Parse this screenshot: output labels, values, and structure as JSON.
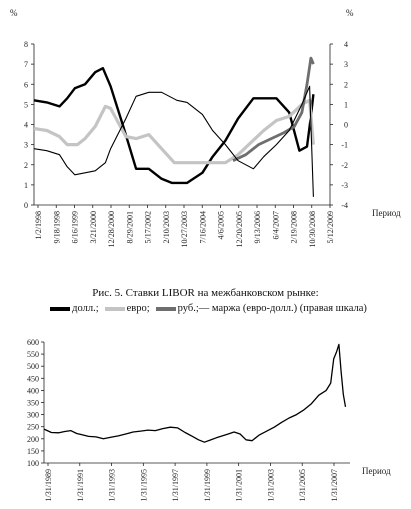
{
  "figure_caption": "Рис. 5. Ставки LIBOR на межбанковском рынке:",
  "chart_data": [
    {
      "type": "line",
      "title": "",
      "left_unit": "%",
      "right_unit": "%",
      "xlabel": "Период",
      "x_tick_labels": [
        "1/2/1998",
        "9/18/1998",
        "6/16/1999",
        "3/21/2000",
        "12/28/2000",
        "8/29/2001",
        "5/17/2002",
        "2/10/2003",
        "10/27/2003",
        "7/16/2004",
        "4/6/2005",
        "12/20/2005",
        "9/13/2006",
        "6/4/2007",
        "2/19/2008",
        "10/30/2008",
        "5/12/2009"
      ],
      "left_axis": {
        "ylim": [
          0,
          8
        ],
        "ticks": [
          "0",
          "1",
          "2",
          "3",
          "4",
          "5",
          "6",
          "7",
          "8"
        ]
      },
      "right_axis": {
        "ylim": [
          -4,
          4
        ],
        "ticks": [
          "-4",
          "-3",
          "-2",
          "-1",
          "0",
          "1",
          "2",
          "3",
          "4"
        ]
      },
      "legend": [
        {
          "label": "долл.;",
          "color": "#000000",
          "style": "thick"
        },
        {
          "label": "евро;",
          "color": "#c4c4c4",
          "style": "thick"
        },
        {
          "label": "руб.;",
          "color": "#6e6e6e",
          "style": "thick"
        },
        {
          "label": "— маржа (евро-долл.) (правая шкала)",
          "color": "#000000",
          "style": "thin"
        }
      ],
      "series": [
        {
          "name": "долл.",
          "axis": "left",
          "x": [
            1998.0,
            1998.5,
            1999.0,
            1999.3,
            1999.6,
            2000.0,
            2000.4,
            2000.7,
            2001.0,
            2001.5,
            2002.0,
            2002.5,
            2003.0,
            2003.4,
            2004.0,
            2004.6,
            2005.0,
            2005.5,
            2006.0,
            2006.6,
            2007.0,
            2007.5,
            2008.0,
            2008.4,
            2008.7,
            2008.85,
            2008.95
          ],
          "values": [
            5.2,
            5.1,
            4.9,
            5.3,
            5.8,
            6.0,
            6.6,
            6.8,
            5.9,
            3.9,
            1.8,
            1.8,
            1.3,
            1.1,
            1.1,
            1.6,
            2.4,
            3.2,
            4.3,
            5.3,
            5.3,
            5.3,
            4.6,
            2.7,
            2.9,
            4.4,
            5.5
          ]
        },
        {
          "name": "евро",
          "axis": "left",
          "x": [
            1998.0,
            1998.5,
            1999.0,
            1999.3,
            1999.7,
            2000.0,
            2000.4,
            2000.8,
            2001.0,
            2001.6,
            2002.0,
            2002.5,
            2003.0,
            2003.5,
            2004.0,
            2004.6,
            2005.0,
            2005.5,
            2006.0,
            2006.5,
            2007.0,
            2007.5,
            2008.0,
            2008.5,
            2008.8,
            2008.95
          ],
          "values": [
            3.8,
            3.7,
            3.4,
            3.0,
            3.0,
            3.3,
            3.9,
            4.9,
            4.8,
            3.4,
            3.3,
            3.5,
            2.8,
            2.1,
            2.1,
            2.1,
            2.1,
            2.1,
            2.5,
            3.1,
            3.7,
            4.2,
            4.4,
            5.0,
            5.2,
            3.0
          ]
        },
        {
          "name": "руб.",
          "axis": "left",
          "x": [
            2005.8,
            2006.3,
            2006.8,
            2007.3,
            2007.8,
            2008.2,
            2008.5,
            2008.7,
            2008.85,
            2008.95
          ],
          "values": [
            2.2,
            2.5,
            3.0,
            3.3,
            3.6,
            3.9,
            4.6,
            6.0,
            7.3,
            7.0
          ]
        },
        {
          "name": "маржа (евро-долл.)",
          "axis": "right",
          "x": [
            1998.0,
            1998.5,
            1999.0,
            1999.3,
            1999.6,
            2000.0,
            2000.4,
            2000.8,
            2001.0,
            2001.6,
            2002.0,
            2002.5,
            2003.0,
            2003.6,
            2004.0,
            2004.6,
            2005.0,
            2005.5,
            2006.0,
            2006.6,
            2007.0,
            2007.5,
            2008.0,
            2008.5,
            2008.8,
            2008.95
          ],
          "values": [
            -1.2,
            -1.3,
            -1.5,
            -2.1,
            -2.5,
            -2.4,
            -2.3,
            -1.9,
            -1.2,
            0.3,
            1.4,
            1.6,
            1.6,
            1.2,
            1.1,
            0.5,
            -0.3,
            -1.0,
            -1.8,
            -2.2,
            -1.6,
            -1.0,
            -0.3,
            1.0,
            1.9,
            -3.6
          ]
        }
      ]
    },
    {
      "type": "line",
      "title": "",
      "xlabel": "Период",
      "ylim": [
        100,
        600
      ],
      "y_ticks": [
        "100",
        "150",
        "200",
        "250",
        "300",
        "350",
        "400",
        "450",
        "500",
        "550",
        "600"
      ],
      "x_tick_labels": [
        "1/31/1989",
        "1/31/1991",
        "1/31/1993",
        "1/31/1995",
        "1/31/1997",
        "1/31/1999",
        "1/31/2001",
        "1/31/2003",
        "1/31/2005",
        "1/31/2007"
      ],
      "series": [
        {
          "x": [
            1989.0,
            1989.5,
            1990.0,
            1990.4,
            1990.8,
            1991.2,
            1991.6,
            1992.0,
            1992.5,
            1993.0,
            1993.5,
            1994.0,
            1994.5,
            1995.0,
            1995.5,
            1996.0,
            1996.5,
            1997.0,
            1997.5,
            1998.0,
            1998.5,
            1999.0,
            1999.4,
            1999.8,
            2000.2,
            2000.6,
            2001.0,
            2001.4,
            2001.8,
            2002.2,
            2002.6,
            2003.0,
            2003.5,
            2004.0,
            2004.5,
            2005.0,
            2005.5,
            2006.0,
            2006.5,
            2007.0,
            2007.5,
            2008.0,
            2008.3,
            2008.5,
            2008.7,
            2008.85,
            2009.0,
            2009.15,
            2009.3
          ],
          "values": [
            240,
            226,
            225,
            230,
            234,
            222,
            216,
            210,
            208,
            200,
            206,
            212,
            220,
            228,
            232,
            236,
            234,
            242,
            248,
            245,
            226,
            210,
            196,
            186,
            195,
            204,
            212,
            220,
            228,
            220,
            196,
            192,
            216,
            232,
            248,
            268,
            286,
            300,
            320,
            345,
            380,
            400,
            430,
            530,
            560,
            590,
            478,
            384,
            332
          ]
        }
      ]
    }
  ],
  "legend_entries": [
    {
      "label": "долл.;",
      "kind": "thick",
      "color": "#000000"
    },
    {
      "label": "евро;",
      "kind": "thick",
      "color": "#c4c4c4"
    },
    {
      "label": "руб.;",
      "kind": "thick",
      "color": "#6e6e6e"
    },
    {
      "label": "— маржа (евро-долл.) (правая шкала)",
      "kind": "thin",
      "color": "#000000"
    }
  ]
}
